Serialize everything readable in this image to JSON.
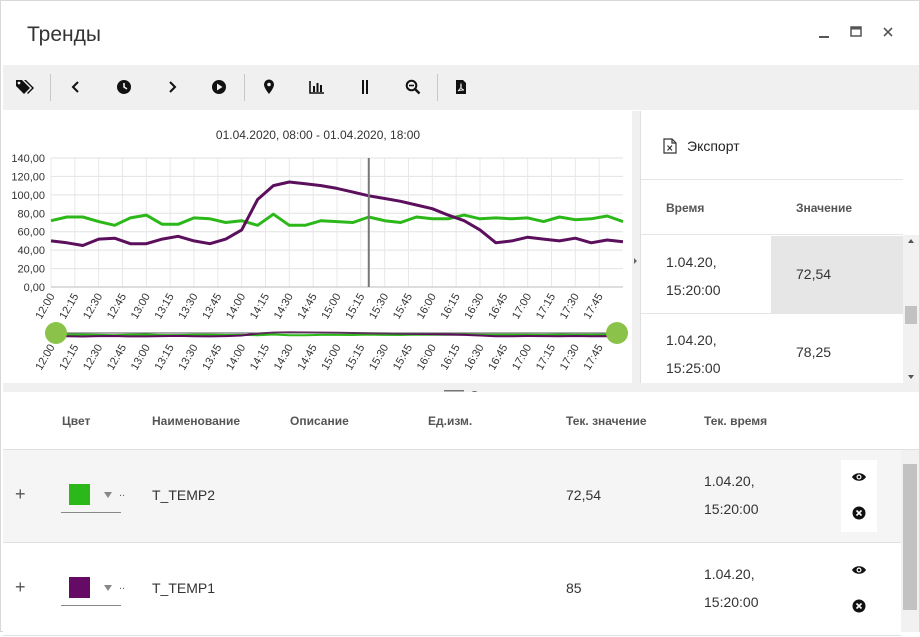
{
  "window": {
    "title": "Тренды",
    "minimize_icon": "minimize-icon",
    "maximize_icon": "maximize-icon",
    "close_icon": "close-icon"
  },
  "toolbar": {
    "buttons": [
      "tags-icon",
      "chevron-left-icon",
      "clock-icon",
      "chevron-right-icon",
      "play-circle-icon",
      "map-pin-icon",
      "bar-chart-icon",
      "double-bar-icon",
      "zoom-out-icon",
      "pdf-file-icon"
    ]
  },
  "chart": {
    "period": "01.04.2020, 08:00 - 01.04.2020, 18:00"
  },
  "chart_data": {
    "type": "line",
    "title": "01.04.2020, 08:00 - 01.04.2020, 18:00",
    "xlabel": "",
    "ylabel": "",
    "x_ticks": [
      "12:00",
      "12:15",
      "12:30",
      "12:45",
      "13:00",
      "13:15",
      "13:30",
      "13:45",
      "14:00",
      "14:15",
      "14:30",
      "14:45",
      "15:00",
      "15:15",
      "15:30",
      "15:45",
      "16:00",
      "16:15",
      "16:30",
      "16:45",
      "17:00",
      "17:15",
      "17:30",
      "17:45"
    ],
    "y_ticks": [
      "0,00",
      "20,00",
      "40,00",
      "60,00",
      "80,00",
      "100,00",
      "120,00",
      "140,00"
    ],
    "ylim": [
      0,
      140
    ],
    "xlim_minutes": [
      720,
      1080
    ],
    "grid": true,
    "cursor_time": "15:20",
    "x_minutes": [
      720,
      730,
      740,
      750,
      760,
      770,
      780,
      790,
      800,
      810,
      820,
      830,
      840,
      850,
      860,
      870,
      880,
      890,
      900,
      910,
      920,
      930,
      940,
      950,
      960,
      970,
      980,
      990,
      1000,
      1010,
      1020,
      1030,
      1040,
      1050,
      1060,
      1070,
      1080
    ],
    "series": [
      {
        "name": "T_TEMP2",
        "color": "#2db81a",
        "values": [
          72,
          76,
          76,
          71,
          67,
          75,
          78,
          68,
          68,
          75,
          74,
          70,
          72,
          67,
          79,
          67,
          67,
          72,
          71,
          70,
          76,
          72,
          70,
          76,
          74,
          74,
          78,
          74,
          75,
          74,
          75,
          71,
          76,
          73,
          74,
          77,
          71
        ]
      },
      {
        "name": "T_TEMP1",
        "color": "#5c0f5c",
        "values": [
          50,
          48,
          45,
          52,
          53,
          47,
          47,
          52,
          55,
          50,
          47,
          52,
          62,
          95,
          110,
          114,
          112,
          110,
          107,
          103,
          99,
          96,
          93,
          89,
          85,
          78,
          72,
          62,
          48,
          50,
          54,
          52,
          50,
          53,
          48,
          51,
          49
        ]
      }
    ]
  },
  "export": {
    "label": "Экспорт",
    "icon": "excel-file-icon"
  },
  "values_table": {
    "columns": [
      "Время",
      "Значение"
    ],
    "rows": [
      {
        "time_line1": "1.04.20,",
        "time_line2": "15:20:00",
        "value": "72,54"
      },
      {
        "time_line1": "1.04.20,",
        "time_line2": "15:25:00",
        "value": "78,25"
      }
    ]
  },
  "tags_table": {
    "columns": [
      "Цвет",
      "Наименование",
      "Описание",
      "Ед.изм.",
      "Тек. значение",
      "Тек. время"
    ],
    "rows": [
      {
        "color": "#2db81a",
        "name": "T_TEMP2",
        "description": "",
        "unit": "",
        "value": "72,54",
        "time_line1": "1.04.20,",
        "time_line2": "15:20:00"
      },
      {
        "color": "#650a65",
        "name": "T_TEMP1",
        "description": "",
        "unit": "",
        "value": "85",
        "time_line1": "1.04.20,",
        "time_line2": "15:20:00"
      }
    ],
    "expand_symbol": "+",
    "dropdown_ellipsis": ".."
  }
}
